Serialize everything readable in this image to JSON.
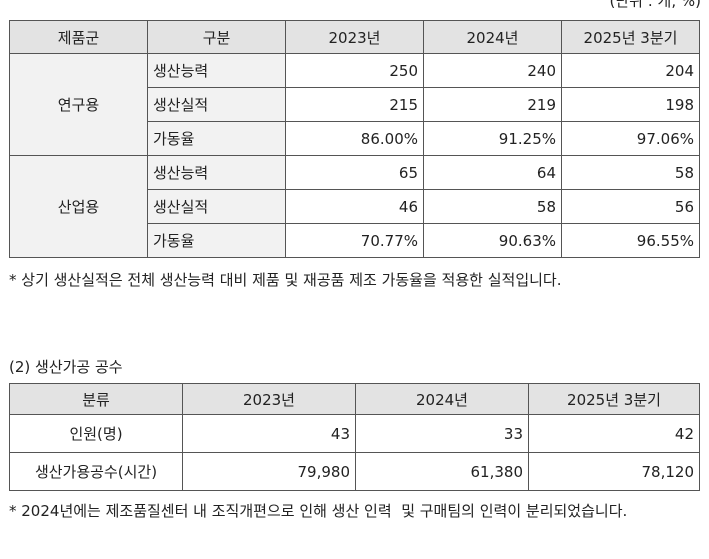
{
  "unit_note": "(단위 : 개, %)",
  "table1": {
    "header": [
      "제품군",
      "구분",
      "2023년",
      "2024년",
      "2025년 3분기"
    ],
    "groups": [
      {
        "name": "연구용",
        "rows": [
          {
            "label": "생산능력",
            "values": [
              "250",
              "240",
              "204"
            ]
          },
          {
            "label": "생산실적",
            "values": [
              "215",
              "219",
              "198"
            ]
          },
          {
            "label": "가동율",
            "values": [
              "86.00%",
              "91.25%",
              "97.06%"
            ]
          }
        ]
      },
      {
        "name": "산업용",
        "rows": [
          {
            "label": "생산능력",
            "values": [
              "65",
              "64",
              "58"
            ]
          },
          {
            "label": "생산실적",
            "values": [
              "46",
              "58",
              "56"
            ]
          },
          {
            "label": "가동율",
            "values": [
              "70.77%",
              "90.63%",
              "96.55%"
            ]
          }
        ]
      }
    ]
  },
  "note1": "* 상기 생산실적은 전체 생산능력 대비 제품 및 재공품 제조 가동율을 적용한 실적입니다.",
  "section2_title": "(2) 생산가공 공수",
  "table2": {
    "header": [
      "분류",
      "2023년",
      "2024년",
      "2025년 3분기"
    ],
    "rows": [
      {
        "label": "인원(명)",
        "values": [
          "43",
          "33",
          "42"
        ]
      },
      {
        "label": "생산가용공수(시간)",
        "values": [
          "79,980",
          "61,380",
          "78,120"
        ]
      }
    ]
  },
  "note2": "* 2024년에는 제조품질센터 내 조직개편으로 인해 생산 인력  및 구매팀의 인력이 분리되었습니다."
}
